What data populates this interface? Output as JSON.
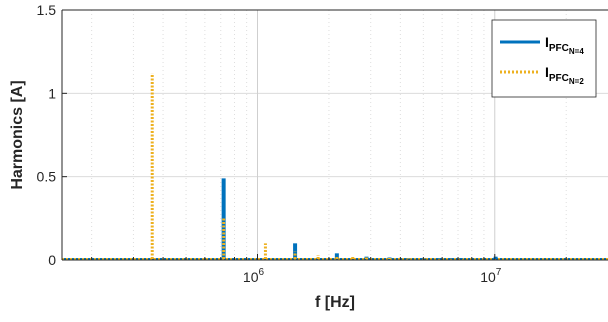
{
  "chart_data": {
    "type": "bar",
    "title": "",
    "xlabel": "f [Hz]",
    "ylabel": "Harmonics [A]",
    "xscale": "log",
    "xlim": [
      150000,
      30000000
    ],
    "ylim": [
      0,
      1.5
    ],
    "grid": true,
    "legend_position": "top-right",
    "x_ticks": [
      {
        "value": 1000000,
        "base": "10",
        "exp": "6"
      },
      {
        "value": 10000000,
        "base": "10",
        "exp": "7"
      }
    ],
    "y_ticks": [
      {
        "value": 0,
        "label": "0"
      },
      {
        "value": 0.5,
        "label": "0.5"
      },
      {
        "value": 1,
        "label": "1"
      },
      {
        "value": 1.5,
        "label": "1.5"
      }
    ],
    "series": [
      {
        "legend_main": "I",
        "legend_sub": "PFC",
        "legend_subsub": "N=4",
        "color": "#0072BD",
        "style": "solid",
        "x": [
          720000,
          1440000,
          2160000,
          2880000,
          3600000,
          4320000,
          5040000,
          5760000,
          6480000,
          7200000,
          10080000
        ],
        "values": [
          0.49,
          0.1,
          0.04,
          0.02,
          0.015,
          0.012,
          0.012,
          0.01,
          0.01,
          0.01,
          0.02
        ]
      },
      {
        "legend_main": "I",
        "legend_sub": "PFC",
        "legend_subsub": "N=2",
        "color": "#EDB120",
        "style": "dotted",
        "x": [
          360000,
          720000,
          1080000,
          1440000,
          1800000,
          2160000,
          2520000,
          2880000,
          3600000,
          4320000,
          5040000
        ],
        "values": [
          1.12,
          0.25,
          0.1,
          0.05,
          0.03,
          0.025,
          0.02,
          0.015,
          0.012,
          0.01,
          0.01
        ]
      }
    ]
  }
}
